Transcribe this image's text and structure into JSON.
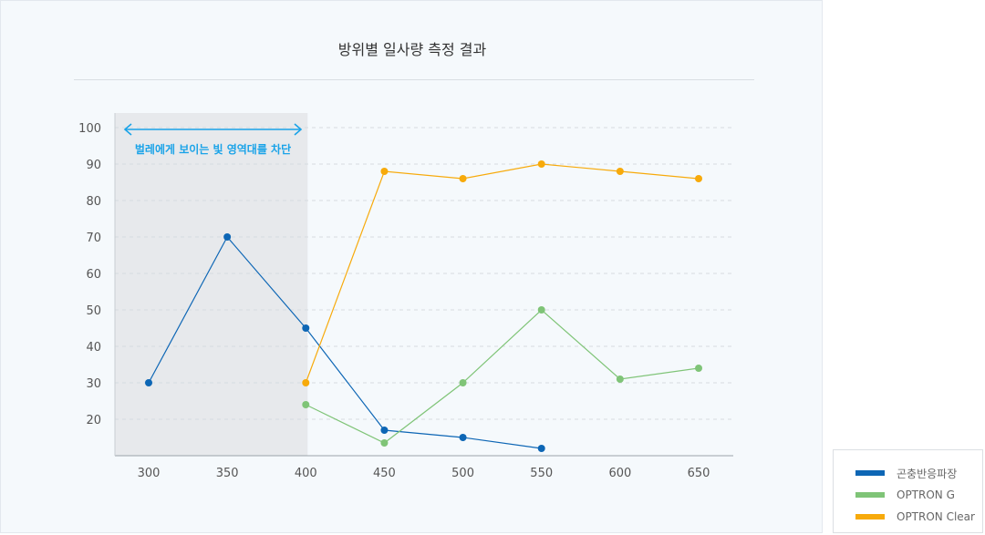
{
  "chart_data": {
    "type": "line",
    "title": "방위별 일사량 측정 결과",
    "xlabel": "",
    "ylabel": "",
    "x": [
      300,
      350,
      400,
      450,
      500,
      550,
      600,
      650
    ],
    "xlim": [
      290,
      660
    ],
    "ylim": [
      10,
      100
    ],
    "yticks": [
      20,
      30,
      40,
      50,
      60,
      70,
      80,
      90,
      100
    ],
    "grid": true,
    "legend_position": "bottom-right",
    "series": [
      {
        "name": "곤충반응파장",
        "color": "#0d66b5",
        "points": [
          [
            300,
            30
          ],
          [
            350,
            70
          ],
          [
            400,
            45
          ],
          [
            450,
            17
          ],
          [
            500,
            15
          ],
          [
            550,
            12
          ]
        ]
      },
      {
        "name": "OPTRON G",
        "color": "#7fc477",
        "points": [
          [
            400,
            24
          ],
          [
            450,
            13.5
          ],
          [
            500,
            30
          ],
          [
            550,
            50
          ],
          [
            600,
            31
          ],
          [
            650,
            34
          ]
        ]
      },
      {
        "name": "OPTRON Clear",
        "color": "#f7aa0b",
        "points": [
          [
            400,
            30
          ],
          [
            450,
            88
          ],
          [
            500,
            86
          ],
          [
            550,
            90
          ],
          [
            600,
            88
          ],
          [
            650,
            86
          ]
        ]
      }
    ],
    "annotation": {
      "text": "벌레에게 보이는 빛 영역대를 차단",
      "x_range": [
        290,
        400
      ],
      "color": "#1aa3e8",
      "shade_color": "#e7e9ec"
    }
  }
}
